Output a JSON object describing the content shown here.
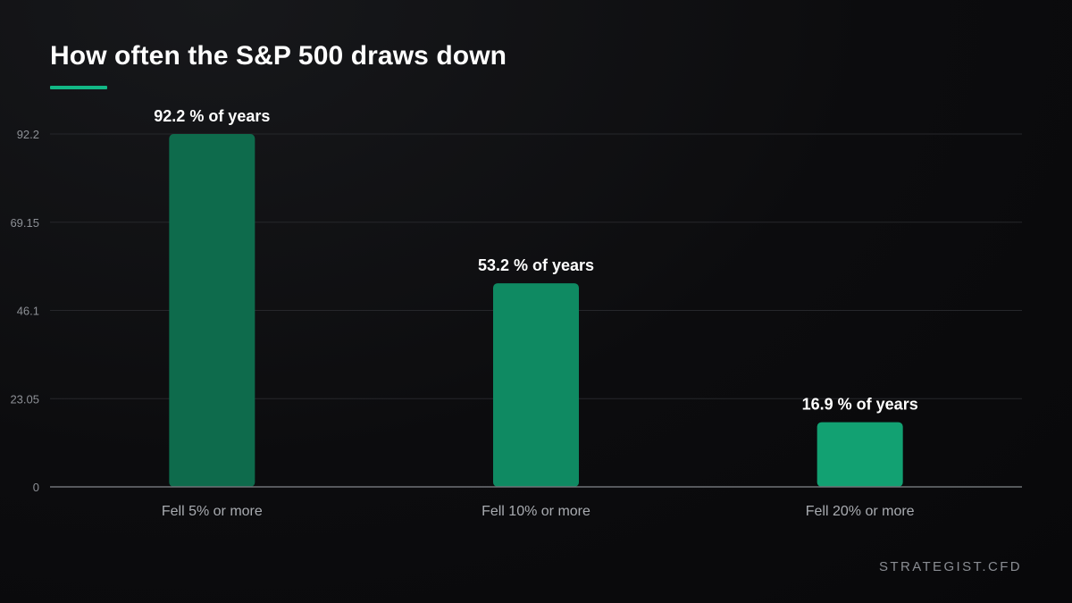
{
  "title": "How often the S&P 500 draws down",
  "brand": "STRATEGIST.CFD",
  "colors": {
    "accent": "#12b886",
    "bar_colors": [
      "#0e6b4c",
      "#0f8a62",
      "#12a172"
    ],
    "grid": "#26272b",
    "axis": "#6f7276",
    "tick_text": "#8d9096",
    "label_text": "#ffffff",
    "category_text": "#a9acb1"
  },
  "chart_data": {
    "type": "bar",
    "categories": [
      "Fell 5% or more",
      "Fell 10% or more",
      "Fell 20% or more"
    ],
    "values": [
      92.2,
      53.2,
      16.9
    ],
    "data_labels": [
      "92.2 % of years",
      "53.2 % of years",
      "16.9 % of years"
    ],
    "y_ticks": [
      "0",
      "23.05",
      "46.1",
      "69.15",
      "92.2"
    ],
    "ylim": [
      0,
      92.2
    ],
    "title": "How often the S&P 500 draws down",
    "xlabel": "",
    "ylabel": "",
    "grid": true,
    "legend": "none"
  }
}
